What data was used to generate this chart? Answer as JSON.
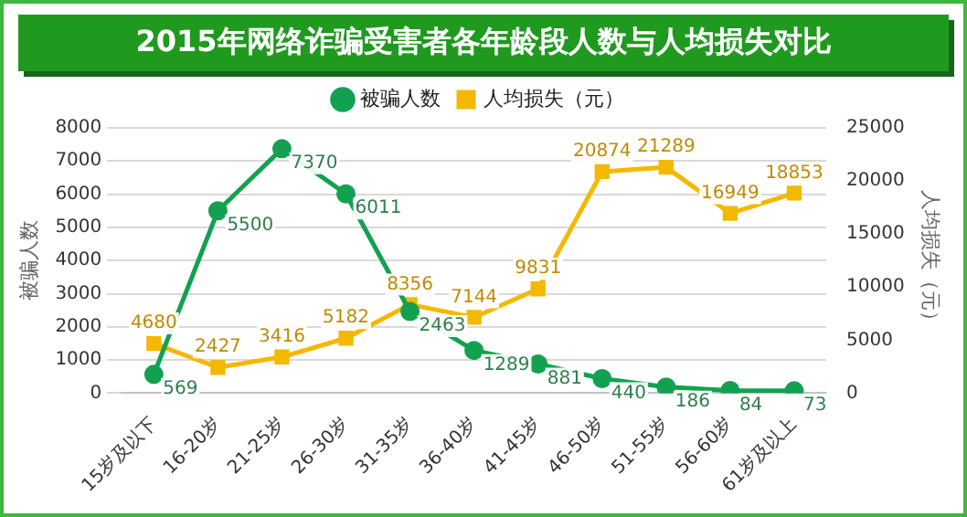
{
  "chart_data": {
    "type": "line",
    "title": "2015年网络诈骗受害者各年龄段人数与人均损失对比",
    "categories": [
      "15岁及以下",
      "16-20岁",
      "21-25岁",
      "26-30岁",
      "31-35岁",
      "36-40岁",
      "41-45岁",
      "46-50岁",
      "51-55岁",
      "56-60岁",
      "61岁及以上"
    ],
    "series": [
      {
        "name": "被骗人数",
        "color": "#12a150",
        "marker": "circle",
        "values": [
          569,
          5500,
          7370,
          6011,
          2463,
          1289,
          881,
          440,
          186,
          84,
          73
        ]
      },
      {
        "name": "人均损失（元）",
        "color": "#f5b800",
        "marker": "square",
        "axis": "y2",
        "values": [
          4680,
          2427,
          3416,
          5182,
          8356,
          7144,
          9831,
          20874,
          21289,
          16949,
          18853
        ]
      }
    ],
    "ylabel": "被骗人数",
    "y2label": "人均损失（元）",
    "ylim": [
      0,
      8000
    ],
    "yticks": [
      0,
      1000,
      2000,
      3000,
      4000,
      5000,
      6000,
      7000,
      8000
    ],
    "y2lim": [
      0,
      25000
    ],
    "y2ticks": [
      0,
      5000,
      10000,
      15000,
      20000,
      25000
    ],
    "grid": "y",
    "legend": "top",
    "data_labels": true
  }
}
